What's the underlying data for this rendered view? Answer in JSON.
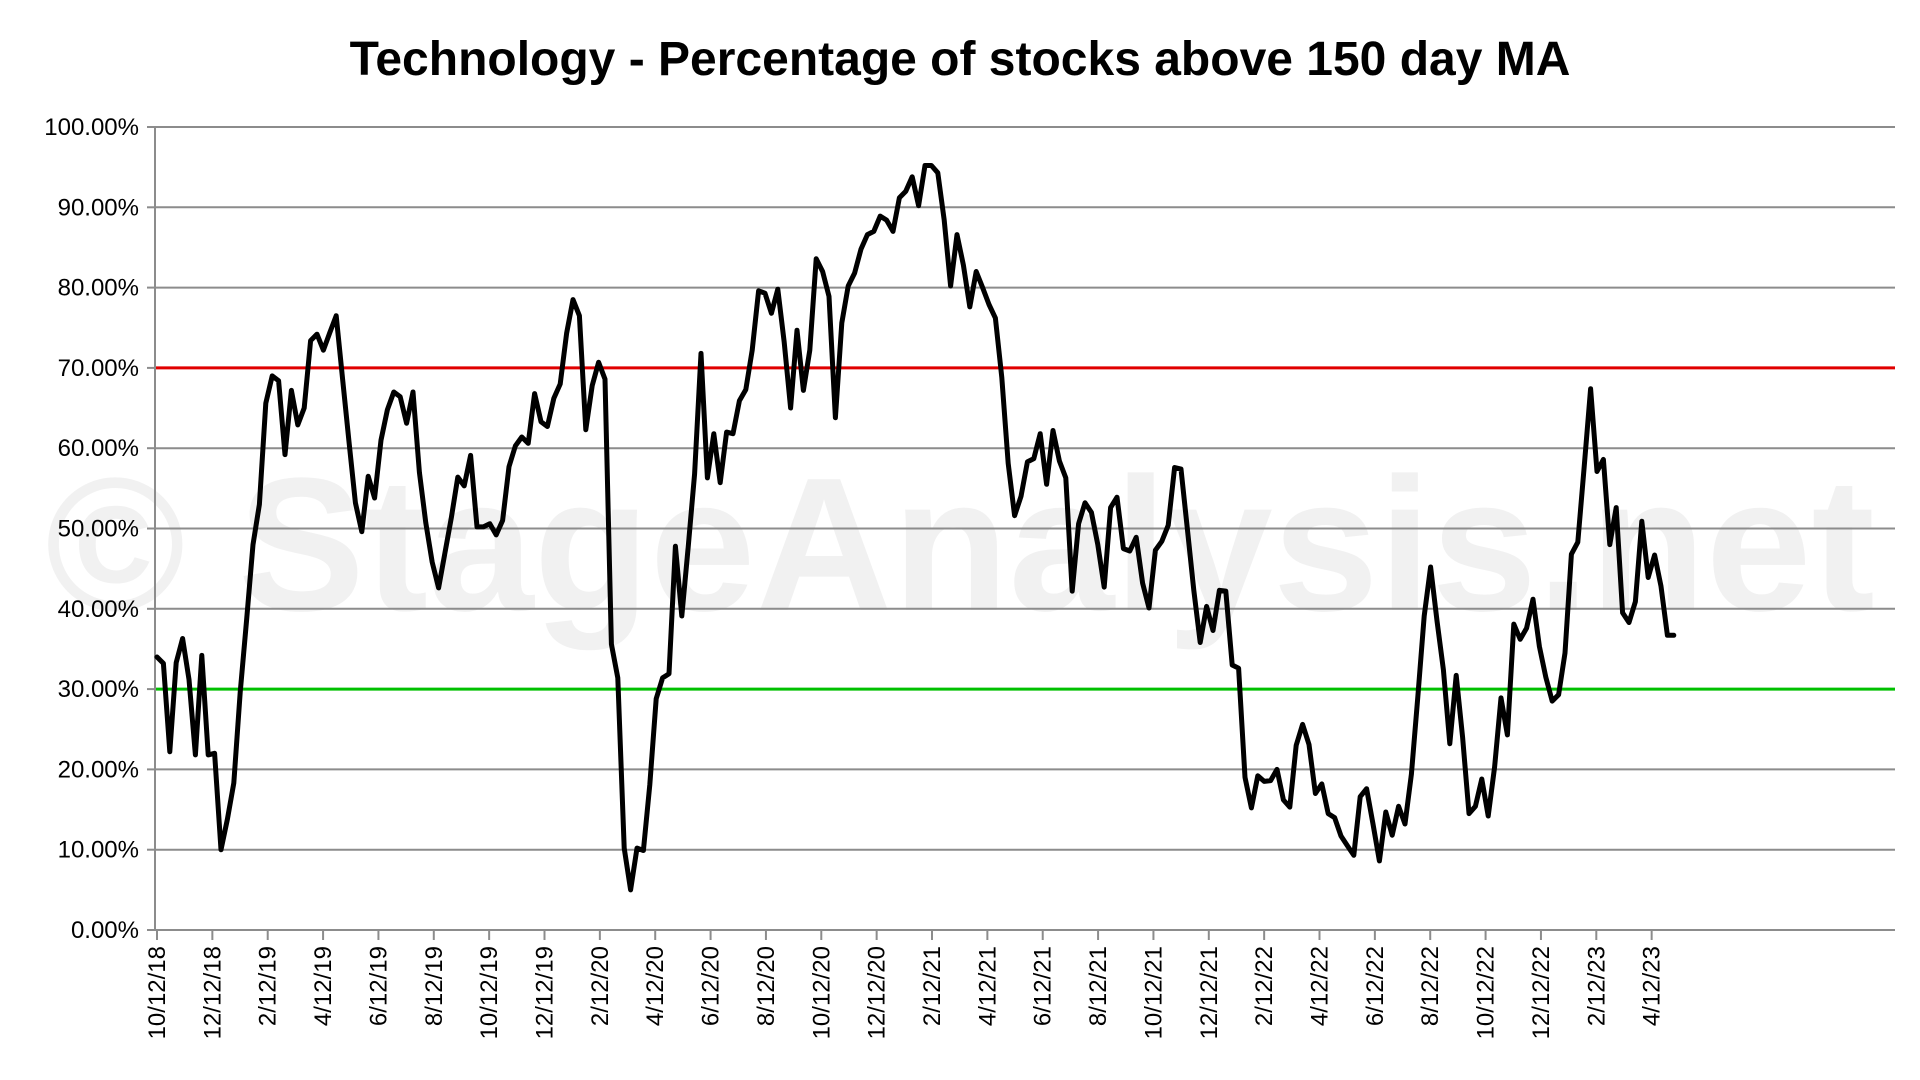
{
  "watermark": "© StageAnalysis.net",
  "chart_data": {
    "type": "line",
    "title": "Technology - Percentage of stocks above 150 day MA",
    "xlabel": "",
    "ylabel": "",
    "ylim": [
      0,
      100
    ],
    "yticks": [
      "0.00%",
      "10.00%",
      "20.00%",
      "30.00%",
      "40.00%",
      "50.00%",
      "60.00%",
      "70.00%",
      "80.00%",
      "90.00%",
      "100.00%"
    ],
    "xticks": [
      "10/12/18",
      "12/12/18",
      "2/12/19",
      "4/12/19",
      "6/12/19",
      "8/12/19",
      "10/12/19",
      "12/12/19",
      "2/12/20",
      "4/12/20",
      "6/12/20",
      "8/12/20",
      "10/12/20",
      "12/12/20",
      "2/12/21",
      "4/12/21",
      "6/12/21",
      "8/12/21",
      "10/12/21",
      "12/12/21",
      "2/12/22",
      "4/12/22",
      "6/12/22",
      "8/12/22",
      "10/12/22",
      "12/12/22",
      "2/12/23",
      "4/12/23"
    ],
    "grid": true,
    "reference_lines": [
      {
        "value": 70,
        "color": "#e00000"
      },
      {
        "value": 30,
        "color": "#00c000"
      }
    ],
    "series": [
      {
        "color": "#000000",
        "values": [
          34,
          33.2,
          22.2,
          33.3,
          36.3,
          31.2,
          21.8,
          34.2,
          21.8,
          22,
          10,
          13.8,
          18.3,
          29.6,
          38.6,
          48,
          53,
          65.6,
          69,
          68.4,
          59.2,
          67.2,
          62.9,
          65,
          73.4,
          74.2,
          72.2,
          74.4,
          76.5,
          68.6,
          60.8,
          53.2,
          49.6,
          56.5,
          53.8,
          61,
          64.8,
          67,
          66.4,
          63.1,
          67,
          57,
          50.7,
          45.8,
          42.6,
          47,
          51.4,
          56.4,
          55.3,
          59.1,
          50.2,
          50.2,
          50.6,
          49.2,
          51,
          57.7,
          60.3,
          61.4,
          60.6,
          66.8,
          63.3,
          62.7,
          66.2,
          68,
          74.3,
          78.5,
          76.5,
          62.3,
          67.8,
          70.7,
          68.6,
          35.6,
          31.4,
          10.2,
          5,
          10.2,
          9.9,
          18.1,
          28.8,
          31.4,
          31.9,
          47.8,
          39.1,
          47.7,
          56.8,
          71.8,
          56.3,
          61.8,
          55.7,
          62,
          61.8,
          65.9,
          67.3,
          72.2,
          79.6,
          79.3,
          76.8,
          79.8,
          73.2,
          65,
          74.7,
          67.2,
          72.2,
          83.6,
          82,
          78.9,
          63.8,
          75.6,
          80.2,
          81.8,
          84.8,
          86.6,
          87,
          88.9,
          88.4,
          87,
          91.2,
          92,
          93.8,
          90.2,
          95.2,
          95.2,
          94.3,
          88.4,
          80.2,
          86.6,
          82.8,
          77.6,
          82,
          80,
          77.9,
          76.2,
          68.8,
          58.1,
          51.6,
          54,
          58.3,
          58.7,
          61.8,
          55.5,
          62.2,
          58.4,
          56.3,
          42.2,
          50.6,
          53.2,
          52,
          48,
          42.7,
          52.6,
          53.9,
          47.5,
          47.2,
          48.9,
          43.2,
          40.1,
          47.3,
          48.4,
          50.4,
          57.6,
          57.4,
          49.9,
          42.3,
          35.8,
          40.3,
          37.3,
          42.3,
          42.2,
          33,
          32.6,
          19,
          15.2,
          19.2,
          18.5,
          18.6,
          20,
          16.2,
          15.3,
          23,
          25.6,
          23.1,
          17,
          18.2,
          14.5,
          14,
          11.7,
          10.5,
          9.3,
          16.6,
          17.6,
          13.2,
          8.6,
          14.7,
          11.8,
          15.4,
          13.2,
          19.4,
          29,
          39.1,
          45.2,
          38.5,
          32.4,
          23.2,
          31.7,
          24,
          14.5,
          15.4,
          18.8,
          14.2,
          20.3,
          28.9,
          24.3,
          38.1,
          36.2,
          37.6,
          41.2,
          35.3,
          31.5,
          28.5,
          29.3,
          34.5,
          46.8,
          48.3,
          57.7,
          67.4,
          57.1,
          58.6,
          48,
          52.6,
          39.5,
          38.3,
          40.9,
          50.9,
          43.9,
          46.7,
          42.8,
          36.7,
          36.7
        ]
      }
    ]
  }
}
